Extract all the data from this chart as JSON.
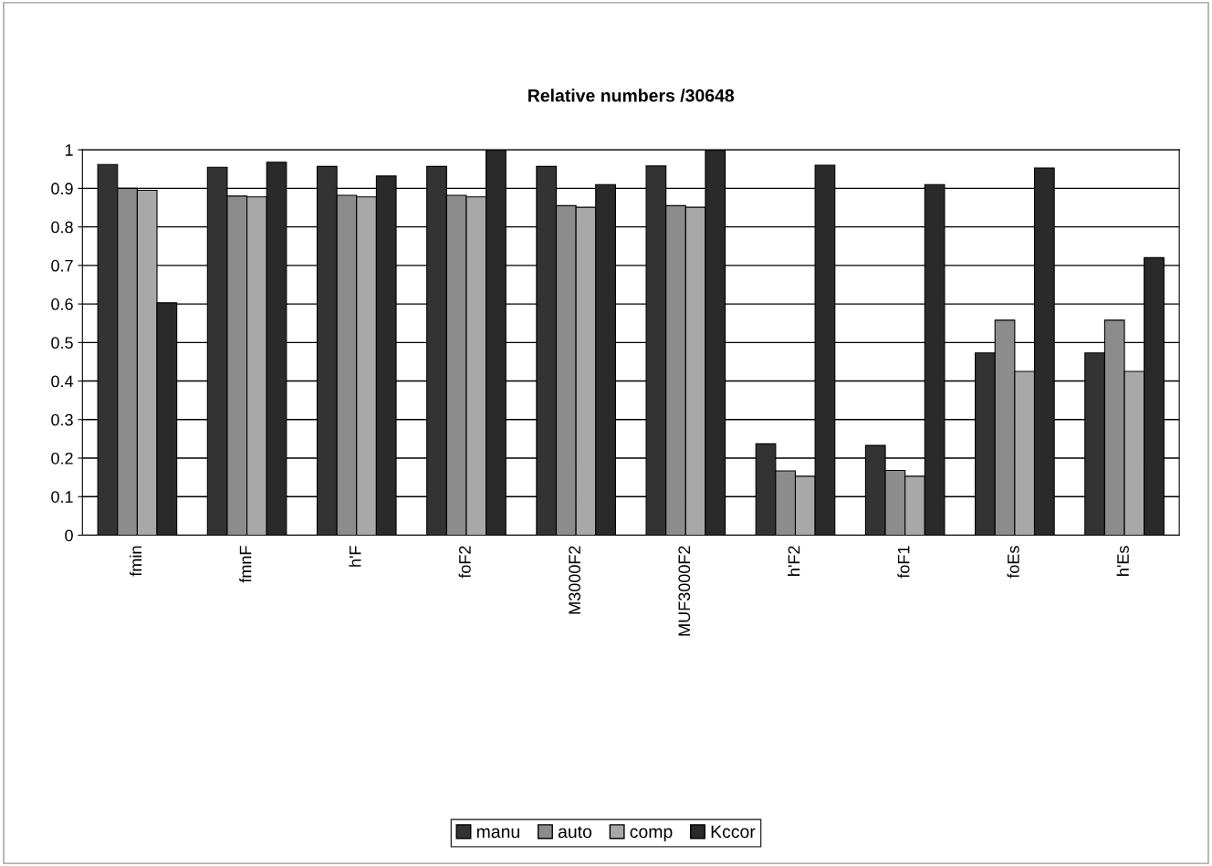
{
  "chart_data": {
    "type": "bar",
    "title": "Relative numbers /30648",
    "categories": [
      "fmin",
      "fmnF",
      "h'F",
      "foF2",
      "M3000F2",
      "MUF3000F2",
      "h'F2",
      "foF1",
      "foEs",
      "h'Es"
    ],
    "series": [
      {
        "name": "manu",
        "color": "#333333",
        "values": [
          0.962,
          0.955,
          0.957,
          0.957,
          0.957,
          0.958,
          0.237,
          0.233,
          0.473,
          0.473
        ]
      },
      {
        "name": "auto",
        "color": "#8c8c8c",
        "values": [
          0.9,
          0.88,
          0.882,
          0.882,
          0.855,
          0.855,
          0.167,
          0.168,
          0.558,
          0.558
        ]
      },
      {
        "name": "comp",
        "color": "#a8a8a8",
        "values": [
          0.895,
          0.878,
          0.878,
          0.878,
          0.851,
          0.851,
          0.153,
          0.153,
          0.425,
          0.425
        ]
      },
      {
        "name": "Kccor",
        "color": "#2a2a2a",
        "values": [
          0.603,
          0.968,
          0.932,
          0.999,
          0.91,
          0.999,
          0.96,
          0.91,
          0.953,
          0.72
        ]
      }
    ],
    "ylim": [
      0,
      1
    ],
    "yticks": [
      0,
      0.1,
      0.2,
      0.3,
      0.4,
      0.5,
      0.6,
      0.7,
      0.8,
      0.9,
      {
        "value": 1,
        "label": "1"
      }
    ],
    "grid": "y",
    "legend": "bottom"
  }
}
